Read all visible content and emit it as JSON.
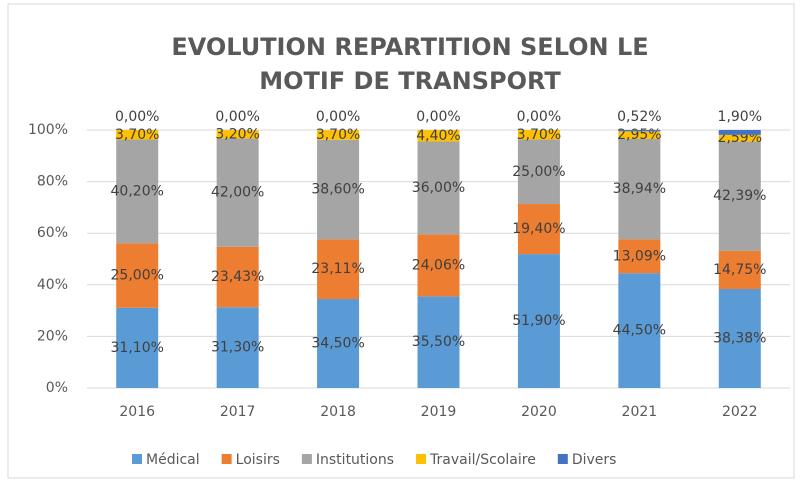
{
  "chart_data": {
    "type": "stacked_bar",
    "title": [
      "EVOLUTION REPARTITION SELON LE",
      "MOTIF DE TRANSPORT"
    ],
    "categories": [
      "2016",
      "2017",
      "2018",
      "2019",
      "2020",
      "2021",
      "2022"
    ],
    "series": [
      {
        "name": "Médical",
        "color": "#5b9bd5",
        "values": [
          31.1,
          31.3,
          34.5,
          35.5,
          51.9,
          44.5,
          38.38
        ],
        "value_labels": [
          "31,10%",
          "31,30%",
          "34,50%",
          "35,50%",
          "51,90%",
          "44,50%",
          "38,38%"
        ]
      },
      {
        "name": "Loisirs",
        "color": "#ed7d31",
        "values": [
          25.0,
          23.43,
          23.11,
          24.06,
          19.4,
          13.09,
          14.75
        ],
        "value_labels": [
          "25,00%",
          "23,43%",
          "23,11%",
          "24,06%",
          "19,40%",
          "13,09%",
          "14,75%"
        ]
      },
      {
        "name": "Institutions",
        "color": "#a5a5a5",
        "values": [
          40.2,
          42.0,
          38.6,
          36.0,
          25.0,
          38.94,
          42.39
        ],
        "value_labels": [
          "40,20%",
          "42,00%",
          "38,60%",
          "36,00%",
          "25,00%",
          "38,94%",
          "42,39%"
        ]
      },
      {
        "name": "Travail/Scolaire",
        "color": "#ffc000",
        "values": [
          3.7,
          3.2,
          3.7,
          4.4,
          3.7,
          2.95,
          2.59
        ],
        "value_labels": [
          "3,70%",
          "3,20%",
          "3,70%",
          "4,40%",
          "3,70%",
          "2,95%",
          "2,59%"
        ]
      },
      {
        "name": "Divers",
        "color": "#4472c4",
        "values": [
          0.0,
          0.0,
          0.0,
          0.0,
          0.0,
          0.52,
          1.9
        ],
        "value_labels": [
          "0,00%",
          "0,00%",
          "0,00%",
          "0,00%",
          "0,00%",
          "0,52%",
          "1,90%"
        ]
      }
    ],
    "ylim": [
      0,
      100
    ],
    "yticks": [
      {
        "value": 0,
        "label": "0%"
      },
      {
        "value": 20,
        "label": "20%"
      },
      {
        "value": 40,
        "label": "40%"
      },
      {
        "value": 60,
        "label": "60%"
      },
      {
        "value": 80,
        "label": "80%"
      },
      {
        "value": 100,
        "label": "100%"
      }
    ],
    "grid": true,
    "legend": "bottom"
  }
}
